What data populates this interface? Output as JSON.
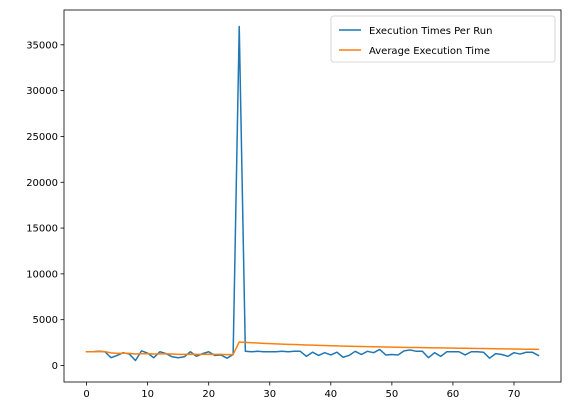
{
  "chart_data": {
    "type": "line",
    "title": "",
    "xlabel": "",
    "ylabel": "",
    "xlim": [
      -3.7,
      77.7
    ],
    "ylim": [
      -1800,
      38800
    ],
    "xticks": [
      0,
      10,
      20,
      30,
      40,
      50,
      60,
      70
    ],
    "yticks": [
      0,
      5000,
      10000,
      15000,
      20000,
      25000,
      30000,
      35000
    ],
    "grid": false,
    "legend": {
      "placement": "top-right"
    },
    "series": [
      {
        "name": "Execution Times Per Run",
        "color": "#1f77b4",
        "x": [
          0,
          1,
          2,
          3,
          4,
          5,
          6,
          7,
          8,
          9,
          10,
          11,
          12,
          13,
          14,
          15,
          16,
          17,
          18,
          19,
          20,
          21,
          22,
          23,
          24,
          25,
          26,
          27,
          28,
          29,
          30,
          31,
          32,
          33,
          34,
          35,
          36,
          37,
          38,
          39,
          40,
          41,
          42,
          43,
          44,
          45,
          46,
          47,
          48,
          49,
          50,
          51,
          52,
          53,
          54,
          55,
          56,
          57,
          58,
          59,
          60,
          61,
          62,
          63,
          64,
          65,
          66,
          67,
          68,
          69,
          70,
          71,
          72,
          73,
          74
        ],
        "y": [
          1500,
          1500,
          1550,
          1500,
          850,
          1100,
          1400,
          1250,
          550,
          1600,
          1350,
          850,
          1500,
          1300,
          950,
          850,
          950,
          1500,
          1000,
          1300,
          1500,
          1100,
          1150,
          800,
          1200,
          37000,
          1550,
          1500,
          1550,
          1500,
          1500,
          1500,
          1550,
          1500,
          1550,
          1550,
          1000,
          1450,
          1100,
          1400,
          1150,
          1450,
          900,
          1100,
          1550,
          1200,
          1550,
          1400,
          1750,
          1150,
          1200,
          1150,
          1600,
          1700,
          1550,
          1550,
          850,
          1400,
          1000,
          1500,
          1500,
          1500,
          1150,
          1500,
          1500,
          1450,
          800,
          1300,
          1200,
          1000,
          1400,
          1250,
          1450,
          1450,
          1100
        ]
      },
      {
        "name": "Average Execution Time",
        "color": "#ff7f0e",
        "x": [
          0,
          1,
          2,
          3,
          4,
          5,
          6,
          7,
          8,
          9,
          10,
          11,
          12,
          13,
          14,
          15,
          16,
          17,
          18,
          19,
          20,
          21,
          22,
          23,
          24,
          25,
          26,
          27,
          28,
          29,
          30,
          31,
          32,
          33,
          34,
          35,
          36,
          37,
          38,
          39,
          40,
          41,
          42,
          43,
          44,
          45,
          46,
          47,
          48,
          49,
          50,
          51,
          52,
          53,
          54,
          55,
          56,
          57,
          58,
          59,
          60,
          61,
          62,
          63,
          64,
          65,
          66,
          67,
          68,
          69,
          70,
          71,
          72,
          73,
          74
        ],
        "y": [
          1500,
          1500,
          1520,
          1510,
          1380,
          1330,
          1340,
          1330,
          1250,
          1280,
          1290,
          1250,
          1270,
          1270,
          1250,
          1220,
          1210,
          1230,
          1220,
          1220,
          1230,
          1220,
          1210,
          1190,
          1190,
          2570,
          2530,
          2490,
          2460,
          2420,
          2390,
          2360,
          2340,
          2310,
          2290,
          2270,
          2240,
          2220,
          2200,
          2180,
          2160,
          2140,
          2120,
          2100,
          2090,
          2070,
          2060,
          2050,
          2040,
          2020,
          2010,
          1990,
          1980,
          1970,
          1960,
          1950,
          1940,
          1930,
          1920,
          1910,
          1900,
          1890,
          1880,
          1870,
          1860,
          1850,
          1840,
          1830,
          1820,
          1810,
          1800,
          1790,
          1780,
          1770,
          1760
        ]
      }
    ]
  }
}
